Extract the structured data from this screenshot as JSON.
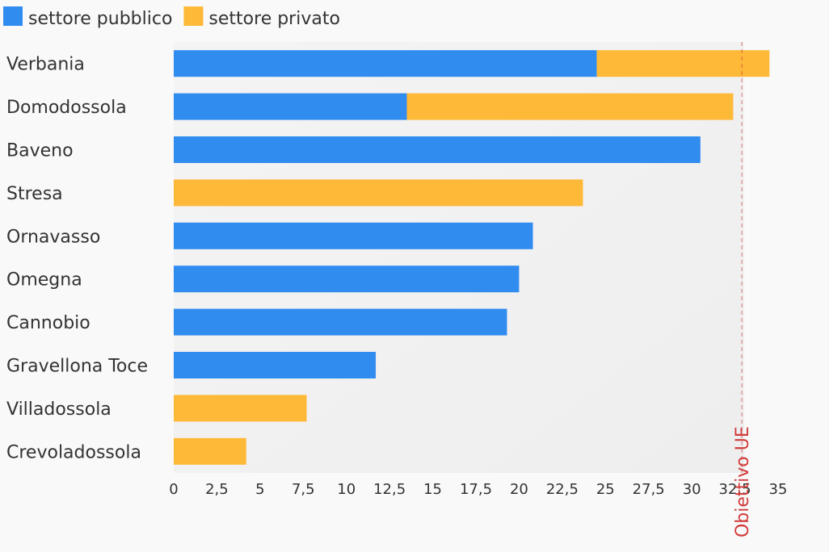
{
  "chart_data": {
    "type": "bar",
    "orientation": "horizontal",
    "stacked": true,
    "categories": [
      "Verbania",
      "Domodossola",
      "Baveno",
      "Stresa",
      "Ornavasso",
      "Omegna",
      "Cannobio",
      "Gravellona Toce",
      "Villadossola",
      "Crevoladossola"
    ],
    "series": [
      {
        "name": "settore pubblico",
        "color": "#318cf0",
        "values": [
          24.5,
          13.5,
          30.5,
          0,
          20.8,
          20.0,
          19.3,
          11.7,
          0,
          0
        ]
      },
      {
        "name": "settore privato",
        "color": "#ffb938",
        "values": [
          10.0,
          18.9,
          0,
          23.7,
          0,
          0,
          0,
          0,
          7.7,
          4.2
        ]
      }
    ],
    "xlim": [
      0,
      35
    ],
    "x_ticks": [
      "0",
      "2,5",
      "5",
      "7,5",
      "10",
      "12,5",
      "15",
      "17,5",
      "20",
      "22,5",
      "25",
      "27,5",
      "30",
      "32,5",
      "35"
    ],
    "reference_line": {
      "value": 32.9,
      "label": "Obiettivo UE",
      "color": "#d13a3a"
    },
    "legend_position": "top-left",
    "grid": false
  }
}
